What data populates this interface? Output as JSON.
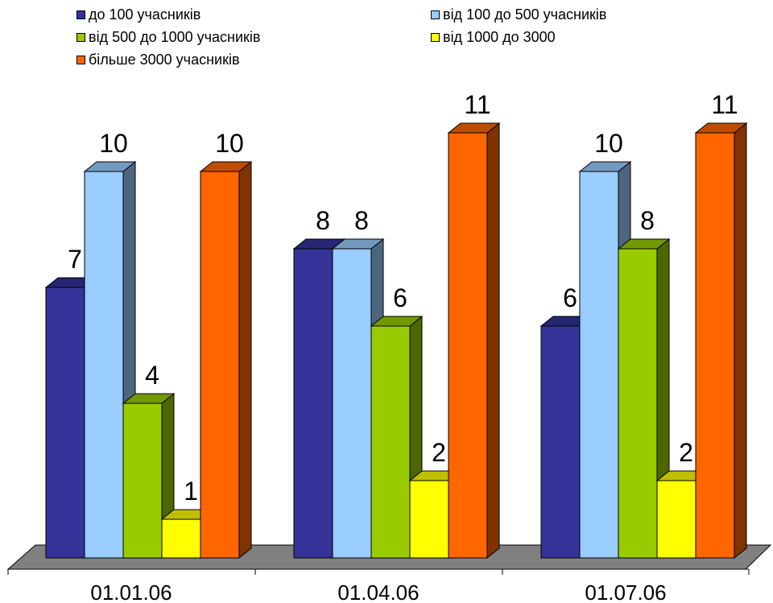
{
  "chart_data": {
    "type": "bar",
    "categories": [
      "01.01.06",
      "01.04.06",
      "01.07.06"
    ],
    "series": [
      {
        "name": "до 100 учасників",
        "values": [
          7,
          8,
          6
        ]
      },
      {
        "name": "від 100 до 500 учасників",
        "values": [
          10,
          8,
          10
        ]
      },
      {
        "name": "від 500 до 1000 учасників",
        "values": [
          4,
          6,
          8
        ]
      },
      {
        "name": "від 1000 до 3000",
        "values": [
          1,
          2,
          2
        ]
      },
      {
        "name": "більше 3000 учасників",
        "values": [
          10,
          11,
          11
        ]
      }
    ],
    "ylim": [
      0,
      11
    ],
    "grid": false,
    "legend": "top",
    "colors": {
      "front": [
        "#333399",
        "#99ccff",
        "#99cc00",
        "#ffff00",
        "#ff6600"
      ],
      "side": [
        "#1a1a4d",
        "#4d6680",
        "#4d6600",
        "#808000",
        "#803300"
      ],
      "top": [
        "#262673",
        "#7399bf",
        "#739900",
        "#bfbf00",
        "#bf4d00"
      ],
      "floor": "#808080"
    }
  }
}
